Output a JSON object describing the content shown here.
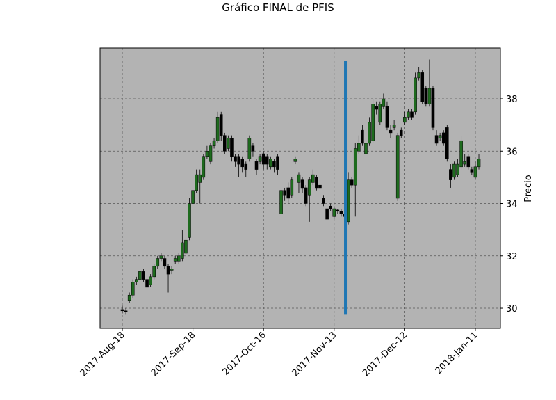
{
  "chart_data": {
    "type": "candlestick",
    "title": "Gráfico FINAL de PFIS",
    "y_label": "Precio",
    "open": [
      29.95,
      29.9,
      30.3,
      30.5,
      31.0,
      31.1,
      31.4,
      31.1,
      30.9,
      31.2,
      31.6,
      31.9,
      31.9,
      31.6,
      31.45,
      31.8,
      31.8,
      31.9,
      32.1,
      32.7,
      34.0,
      34.5,
      34.8,
      35.0,
      35.8,
      35.6,
      36.2,
      36.4,
      37.4,
      36.6,
      36.1,
      36.5,
      35.8,
      35.8,
      35.7,
      35.5,
      35.7,
      36.2,
      35.6,
      35.6,
      35.9,
      35.8,
      35.4,
      35.6,
      35.8,
      33.6,
      34.5,
      34.6,
      34.3,
      35.6,
      34.8,
      34.9,
      34.6,
      34.3,
      34.8,
      35.0,
      34.7,
      34.2,
      33.8,
      33.9,
      33.5,
      33.75,
      33.7,
      33.6,
      33.3,
      34.9,
      34.7,
      36.0,
      36.8,
      35.9,
      36.3,
      36.4,
      37.7,
      37.1,
      37.7,
      37.7,
      36.8,
      36.9,
      34.2,
      36.8,
      37.1,
      37.3,
      37.5,
      37.5,
      38.8,
      39.0,
      38.4,
      37.8,
      38.4,
      36.6,
      36.5,
      36.7,
      36.9,
      35.3,
      35.0,
      35.1,
      35.4,
      35.5,
      35.8,
      35.3,
      35.0,
      35.4
    ],
    "high": [
      30.1,
      30.0,
      30.6,
      31.1,
      31.2,
      31.5,
      31.5,
      31.2,
      31.3,
      31.7,
      32.0,
      32.1,
      32.0,
      31.7,
      31.6,
      32.0,
      32.1,
      33.0,
      32.8,
      34.2,
      34.7,
      35.3,
      35.3,
      35.9,
      36.2,
      36.3,
      36.5,
      37.5,
      37.5,
      36.7,
      36.6,
      36.6,
      35.9,
      35.9,
      35.8,
      35.6,
      36.6,
      36.3,
      35.7,
      35.9,
      36.0,
      35.9,
      35.8,
      35.7,
      35.9,
      34.7,
      34.6,
      34.8,
      35.0,
      35.8,
      35.2,
      35.0,
      34.7,
      35.0,
      35.3,
      35.1,
      34.8,
      34.3,
      33.9,
      34.0,
      33.9,
      33.8,
      33.8,
      33.7,
      35.2,
      35.0,
      36.3,
      36.6,
      37.0,
      36.6,
      37.3,
      38.0,
      37.9,
      37.9,
      38.2,
      37.9,
      37.0,
      37.2,
      36.7,
      36.9,
      37.5,
      37.6,
      37.6,
      39.0,
      39.2,
      39.1,
      38.5,
      39.5,
      38.5,
      36.8,
      36.7,
      36.8,
      37.0,
      35.5,
      35.6,
      35.7,
      36.6,
      35.9,
      35.9,
      35.4,
      35.6,
      35.9
    ],
    "low": [
      29.8,
      29.75,
      30.2,
      30.4,
      30.9,
      31.0,
      31.0,
      30.7,
      30.8,
      31.1,
      31.5,
      31.8,
      31.5,
      30.6,
      31.3,
      31.7,
      31.7,
      31.8,
      32.0,
      32.6,
      33.9,
      34.4,
      34.0,
      34.9,
      35.7,
      35.5,
      36.1,
      36.3,
      36.4,
      35.9,
      36.0,
      35.6,
      35.4,
      35.0,
      35.2,
      35.0,
      35.6,
      35.8,
      35.1,
      35.5,
      35.3,
      35.3,
      35.3,
      35.2,
      35.1,
      33.5,
      34.1,
      34.0,
      34.2,
      35.5,
      34.4,
      34.4,
      33.9,
      33.3,
      34.7,
      34.5,
      34.5,
      33.9,
      33.3,
      33.7,
      33.4,
      33.6,
      33.5,
      33.4,
      33.2,
      34.6,
      33.5,
      35.9,
      36.2,
      35.8,
      36.2,
      36.3,
      37.4,
      37.0,
      37.6,
      36.8,
      36.5,
      36.8,
      34.1,
      36.5,
      37.0,
      37.2,
      37.2,
      37.4,
      38.7,
      37.8,
      37.7,
      37.7,
      36.8,
      36.2,
      36.4,
      36.2,
      35.6,
      34.6,
      34.9,
      35.0,
      35.3,
      35.4,
      35.3,
      35.1,
      34.9,
      35.3
    ],
    "close": [
      29.9,
      29.85,
      30.5,
      31.0,
      31.1,
      31.4,
      31.1,
      30.8,
      31.2,
      31.6,
      31.9,
      32.0,
      31.6,
      31.3,
      31.5,
      31.9,
      32.0,
      32.5,
      32.6,
      34.0,
      34.5,
      35.1,
      35.1,
      35.8,
      36.0,
      36.2,
      36.4,
      37.3,
      36.6,
      36.0,
      36.5,
      35.8,
      35.6,
      35.5,
      35.4,
      35.3,
      36.5,
      36.0,
      35.3,
      35.8,
      35.5,
      35.5,
      35.7,
      35.4,
      35.3,
      34.5,
      34.3,
      34.2,
      34.9,
      35.7,
      35.1,
      34.6,
      34.0,
      34.9,
      35.1,
      34.6,
      34.6,
      34.0,
      33.4,
      33.8,
      33.8,
      33.7,
      33.6,
      33.5,
      34.9,
      34.7,
      36.1,
      36.3,
      36.3,
      36.3,
      37.1,
      37.8,
      37.6,
      37.8,
      38.0,
      36.9,
      36.7,
      37.0,
      36.6,
      36.6,
      37.3,
      37.5,
      37.3,
      38.8,
      39.0,
      37.9,
      37.8,
      38.4,
      36.9,
      36.3,
      36.6,
      36.3,
      35.7,
      34.9,
      35.5,
      35.5,
      36.4,
      35.6,
      35.4,
      35.2,
      35.4,
      35.7
    ],
    "up_color": "#1e6b1e",
    "down_color": "#000000",
    "vline": {
      "x": 63.2,
      "ymin": 29.75,
      "ymax": 39.45,
      "color": "#1f77b4"
    },
    "xlim": [
      -6.3,
      107.1
    ],
    "xticks": [
      {
        "value": 0,
        "label": "2017-Aug-18"
      },
      {
        "value": 20,
        "label": "2017-Sep-18"
      },
      {
        "value": 40,
        "label": "2017-Oct-16"
      },
      {
        "value": 60,
        "label": "2017-Nov-13"
      },
      {
        "value": 80,
        "label": "2017-Dec-12"
      },
      {
        "value": 100,
        "label": "2018-Jan-11"
      }
    ],
    "ylim": [
      29.23,
      39.94
    ],
    "yticks": [
      30,
      32,
      34,
      36,
      38
    ],
    "grid": true,
    "background": "#b3b3b3"
  }
}
